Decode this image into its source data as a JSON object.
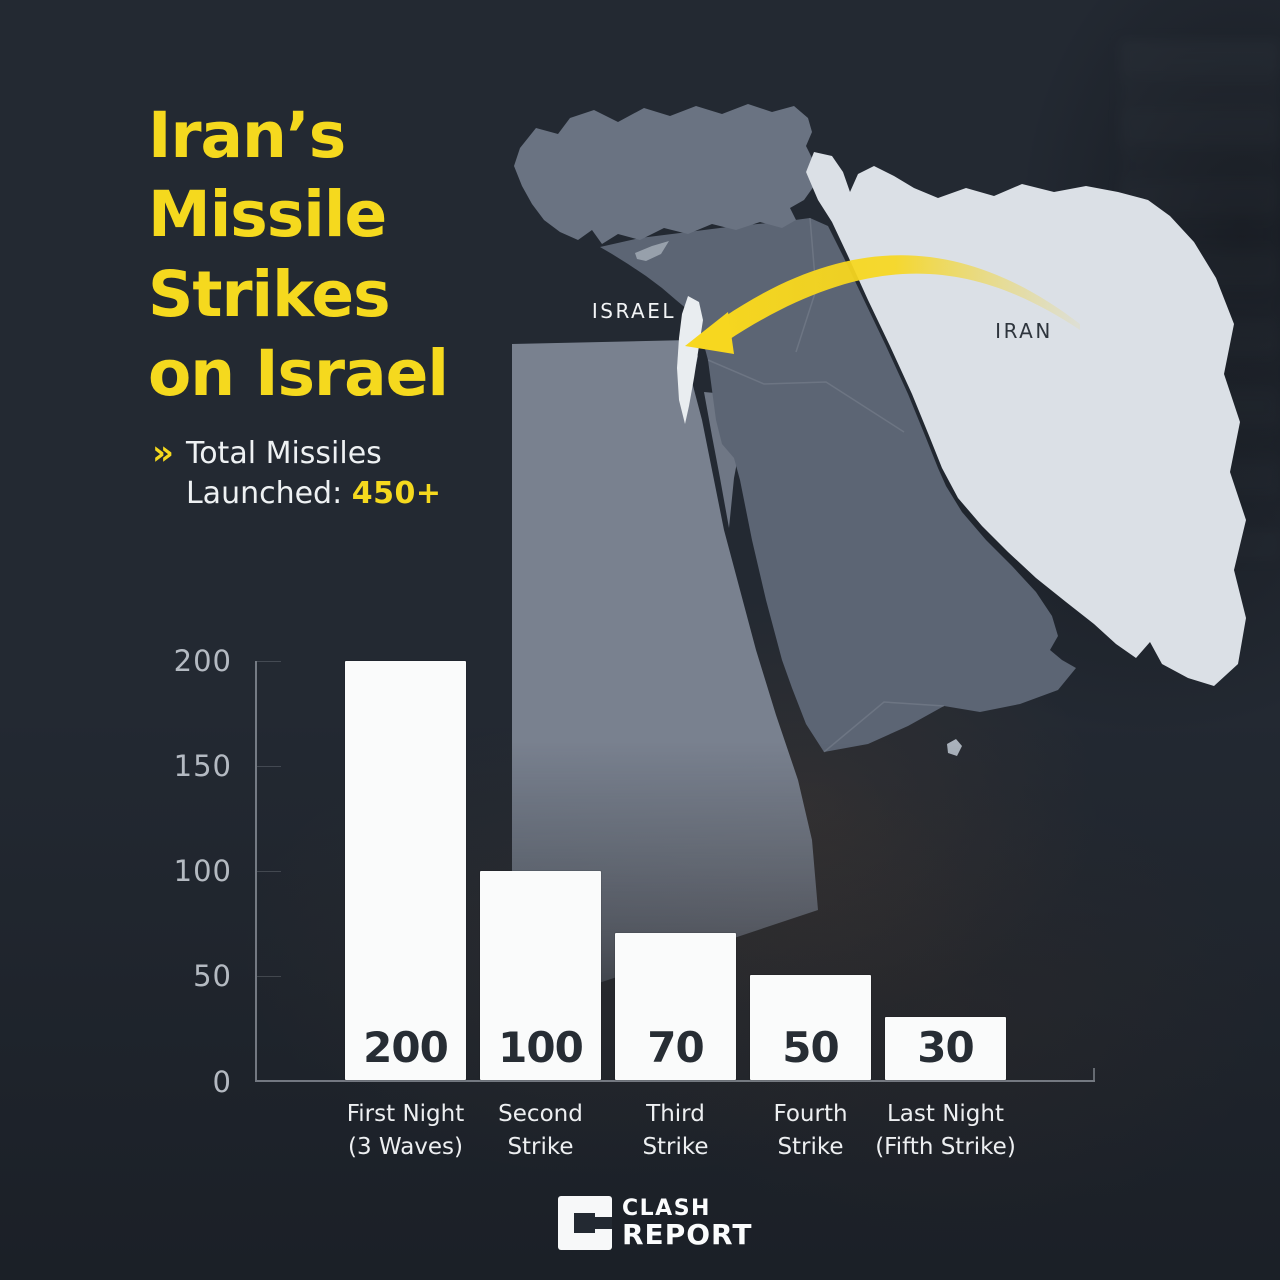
{
  "title": "Iran’s\nMissile\nStrikes\non Israel",
  "subtitle": {
    "chevron": "»",
    "text": "Total Missiles\nLaunched: ",
    "value": "450+"
  },
  "map": {
    "labels": {
      "israel": "ISRAEL",
      "iran": "IRAN"
    },
    "colors": {
      "sea": "#232932",
      "turkey": "#6a7382",
      "levant_arabia": "#5c6574",
      "egypt": "#79818f",
      "iran": "#dbe0e6",
      "israel": "#e9edf0",
      "cyprus": "#97a0ab",
      "qatar": "#aab2bc",
      "arrow": "#f7d71f"
    }
  },
  "chart_data": {
    "type": "bar",
    "title": "",
    "xlabel": "",
    "ylabel": "",
    "categories": [
      "First Night\n(3 Waves)",
      "Second\nStrike",
      "Third\nStrike",
      "Fourth\nStrike",
      "Last Night\n(Fifth Strike)"
    ],
    "values": [
      200,
      100,
      70,
      50,
      30
    ],
    "value_labels": [
      "200",
      "100",
      "70",
      "50",
      "30"
    ],
    "yticks": [
      "200",
      "150",
      "100",
      "50",
      "0"
    ],
    "ylim": [
      0,
      200
    ],
    "grid": false,
    "legend": false,
    "bar_color": "#fafbfb",
    "value_label_color": "#272d34",
    "axis_color": "#b9c0c8"
  },
  "footer": {
    "brand_line1": "CLASH",
    "brand_line2": "REPORT"
  },
  "accent_color": "#f5d91e",
  "background_color": "#232932"
}
